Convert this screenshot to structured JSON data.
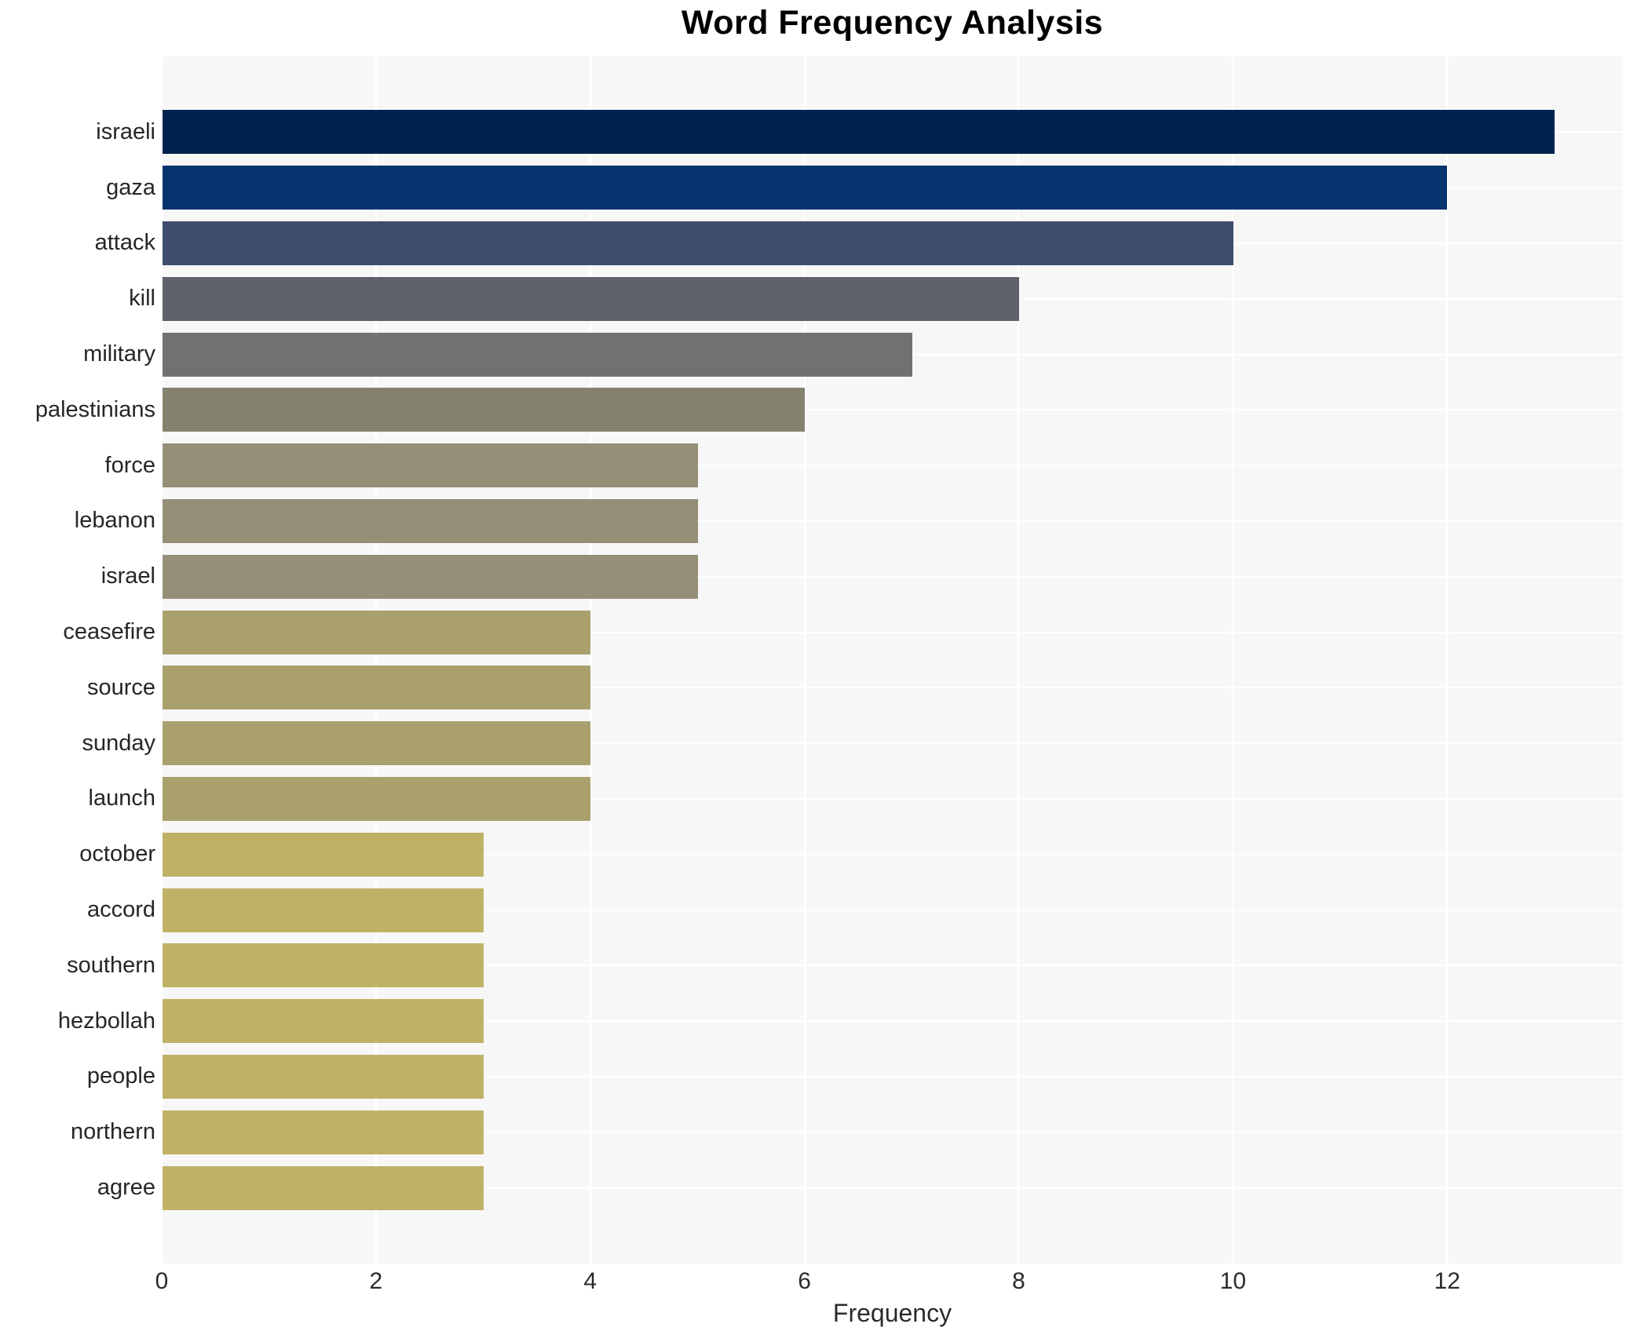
{
  "chart_data": {
    "type": "bar",
    "orientation": "horizontal",
    "title": "Word Frequency Analysis",
    "xlabel": "Frequency",
    "ylabel": "",
    "categories": [
      "israeli",
      "gaza",
      "attack",
      "kill",
      "military",
      "palestinians",
      "force",
      "lebanon",
      "israel",
      "ceasefire",
      "source",
      "sunday",
      "launch",
      "october",
      "accord",
      "southern",
      "hezbollah",
      "people",
      "northern",
      "agree"
    ],
    "values": [
      13,
      12,
      10,
      8,
      7,
      6,
      5,
      5,
      5,
      4,
      4,
      4,
      4,
      3,
      3,
      3,
      3,
      3,
      3,
      3
    ],
    "bar_colors": [
      "#00224e",
      "#04336e",
      "#404e6e",
      "#5f626b",
      "#717170",
      "#84816f",
      "#958f78",
      "#958f78",
      "#958f78",
      "#aaa06d",
      "#aaa06d",
      "#aaa06d",
      "#aaa06d",
      "#bfb267",
      "#bfb267",
      "#bfb267",
      "#bfb267",
      "#bfb267",
      "#bfb267",
      "#bfb267"
    ],
    "xticks": [
      0,
      2,
      4,
      6,
      8,
      10,
      12
    ],
    "xlim": [
      0,
      13.64
    ],
    "grid": true,
    "legend": false,
    "plot_background": "#f7f7f7",
    "grid_color": "#ffffff",
    "title_color": "#000000",
    "tick_label_color": "#2b2b2b",
    "category_label_color": "#262626"
  }
}
